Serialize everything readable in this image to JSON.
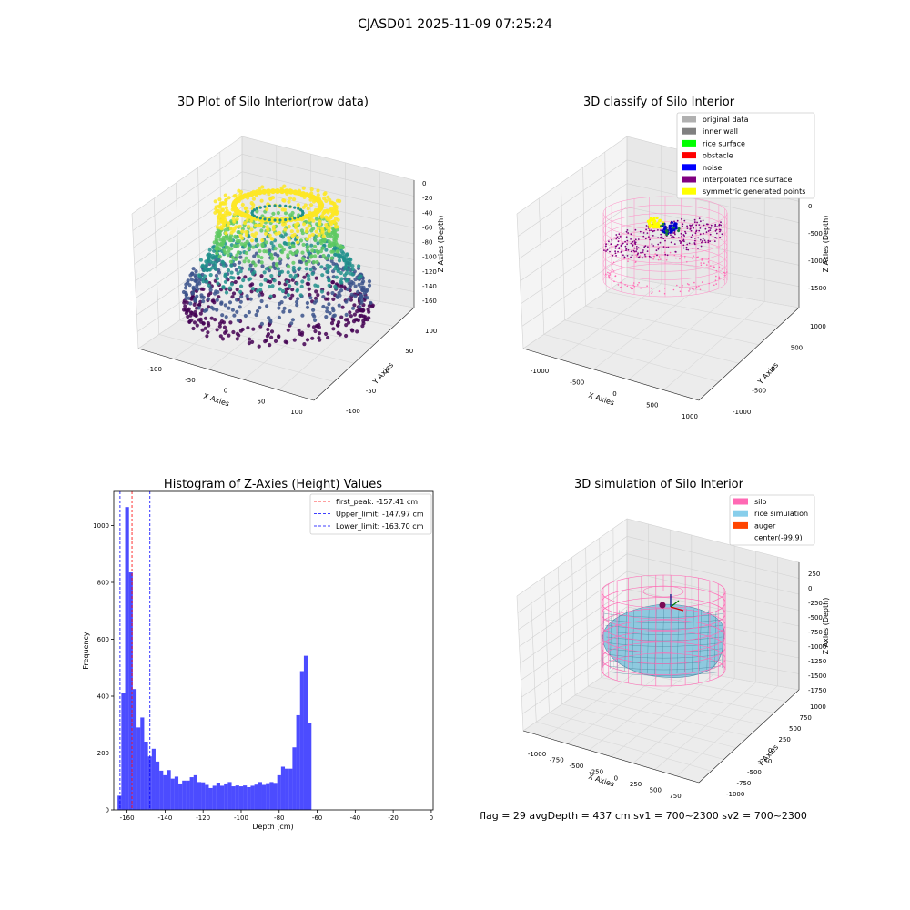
{
  "figure": {
    "suptitle": "CJASD01 2025-11-09 07:25:24",
    "status_line": "flag = 29  avgDepth = 437 cm  sv1 = 700~2300  sv2 = 700~2300"
  },
  "panels": {
    "raw": {
      "title": "3D Plot of Silo Interior(row data)",
      "xlabel": "X Axies",
      "ylabel": "Y Axies",
      "zlabel": "Z Axies (Depth)",
      "xticks": [
        "-100",
        "-50",
        "0",
        "50",
        "100"
      ],
      "yticks": [
        "-100",
        "-50",
        "0",
        "50",
        "100"
      ],
      "zticks": [
        "0",
        "-20",
        "-40",
        "-60",
        "-80",
        "-100",
        "-120",
        "-140",
        "-160"
      ],
      "colormap": [
        "#440154",
        "#3b528b",
        "#21918c",
        "#5ec962",
        "#fde725"
      ]
    },
    "classify": {
      "title": "3D classify of Silo Interior",
      "xlabel": "X Axies",
      "ylabel": "Y Axies",
      "zlabel": "Z Axies (Depth)",
      "xticks": [
        "-1000",
        "-500",
        "0",
        "500",
        "1000"
      ],
      "yticks": [
        "-1000",
        "-500",
        "0",
        "500",
        "1000"
      ],
      "zticks": [
        "0",
        "-500",
        "-1000",
        "-1500"
      ],
      "legend": [
        {
          "label": "original data",
          "color": "#b0b0b0"
        },
        {
          "label": "inner wall",
          "color": "#808080"
        },
        {
          "label": "rice surface",
          "color": "#00ff00"
        },
        {
          "label": "obstacle",
          "color": "#ff0000"
        },
        {
          "label": "noise",
          "color": "#0000ff"
        },
        {
          "label": "interpolated rice surface",
          "color": "#800080"
        },
        {
          "label": "symmetric generated points",
          "color": "#ffff00"
        }
      ]
    },
    "simulation": {
      "title": "3D simulation of Silo Interior",
      "xlabel": "X Axies",
      "ylabel": "Y Axies",
      "zlabel": "Z Axies (Depth)",
      "xticks": [
        "-1000",
        "-750",
        "-500",
        "-250",
        "0",
        "250",
        "500",
        "750"
      ],
      "yticks": [
        "-1000",
        "-750",
        "-500",
        "-250",
        "0",
        "250",
        "500",
        "750",
        "1000"
      ],
      "zticks": [
        "250",
        "0",
        "-250",
        "-500",
        "-750",
        "-1000",
        "-1250",
        "-1500",
        "-1750"
      ],
      "legend": [
        {
          "label": "silo",
          "color": "#ff69b4"
        },
        {
          "label": "rice simulation",
          "color": "#87ceeb"
        },
        {
          "label": "auger",
          "color": "#ff4500"
        },
        {
          "label": "center(-99,9)",
          "color": "#ffffff"
        }
      ]
    }
  },
  "chart_data": {
    "type": "bar",
    "title": "Histogram of Z-Axies (Height) Values",
    "xlabel": "Depth (cm)",
    "ylabel": "Frequency",
    "xlim": [
      -167,
      1
    ],
    "ylim": [
      0,
      1120
    ],
    "xticks": [
      -160,
      -140,
      -120,
      -100,
      -80,
      -60,
      -40,
      -20,
      0
    ],
    "yticks": [
      0,
      200,
      400,
      600,
      800,
      1000
    ],
    "bar_color": "#0000ff",
    "bin_start": -165,
    "bin_width": 2,
    "values": [
      50,
      410,
      1065,
      835,
      425,
      290,
      325,
      240,
      188,
      215,
      170,
      138,
      122,
      140,
      110,
      117,
      93,
      103,
      103,
      115,
      122,
      98,
      97,
      88,
      77,
      85,
      96,
      85,
      93,
      98,
      83,
      86,
      83,
      86,
      80,
      85,
      89,
      98,
      88,
      94,
      98,
      95,
      122,
      152,
      145,
      145,
      220,
      333,
      488,
      542,
      305
    ],
    "vlines": [
      {
        "name": "first_peak: -157.41 cm",
        "x": -157.41,
        "color": "#ff0000"
      },
      {
        "name": "Upper_limit: -147.97 cm",
        "x": -147.97,
        "color": "#0000ff"
      },
      {
        "name": "Lower_limit: -163.70 cm",
        "x": -163.7,
        "color": "#0000ff"
      }
    ],
    "legend_position": "top-right"
  }
}
